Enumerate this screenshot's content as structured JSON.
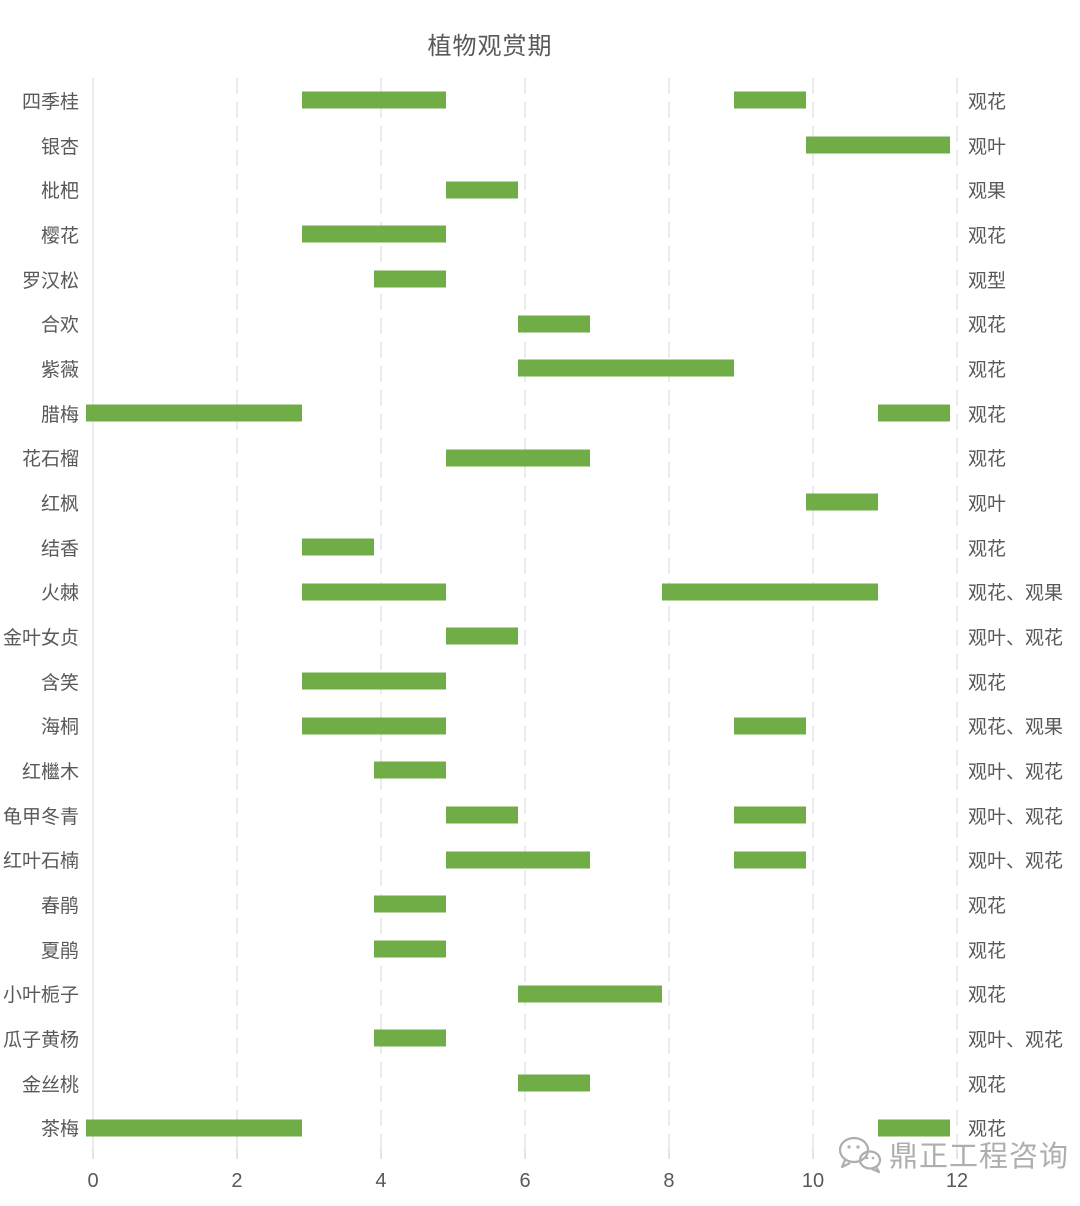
{
  "chart_data": {
    "type": "bar",
    "subtype": "gantt-month-ranges",
    "title": "植物观赏期",
    "xlabel": "",
    "ylabel": "",
    "xlim": [
      0,
      12
    ],
    "x_ticks": [
      0,
      2,
      4,
      6,
      8,
      10,
      12
    ],
    "grid": "vertical-dashed",
    "legend": "none",
    "bar_color": "#70AD47",
    "rows": [
      {
        "name": "四季桂",
        "type": "观花",
        "periods": [
          [
            3,
            5
          ],
          [
            9,
            10
          ]
        ]
      },
      {
        "name": "银杏",
        "type": "观叶",
        "periods": [
          [
            10,
            12
          ]
        ]
      },
      {
        "name": "枇杷",
        "type": "观果",
        "periods": [
          [
            5,
            6
          ]
        ]
      },
      {
        "name": "樱花",
        "type": "观花",
        "periods": [
          [
            3,
            5
          ]
        ]
      },
      {
        "name": "罗汉松",
        "type": "观型",
        "periods": [
          [
            4,
            5
          ]
        ]
      },
      {
        "name": "合欢",
        "type": "观花",
        "periods": [
          [
            6,
            7
          ]
        ]
      },
      {
        "name": "紫薇",
        "type": "观花",
        "periods": [
          [
            6,
            9
          ]
        ]
      },
      {
        "name": "腊梅",
        "type": "观花",
        "periods": [
          [
            0,
            3
          ],
          [
            11,
            12
          ]
        ]
      },
      {
        "name": "花石榴",
        "type": "观花",
        "periods": [
          [
            5,
            7
          ]
        ]
      },
      {
        "name": "红枫",
        "type": "观叶",
        "periods": [
          [
            10,
            11
          ]
        ]
      },
      {
        "name": "结香",
        "type": "观花",
        "periods": [
          [
            3,
            4
          ]
        ]
      },
      {
        "name": "火棘",
        "type": "观花、观果",
        "periods": [
          [
            3,
            5
          ],
          [
            8,
            11
          ]
        ]
      },
      {
        "name": "金叶女贞",
        "type": "观叶、观花",
        "periods": [
          [
            5,
            6
          ]
        ]
      },
      {
        "name": "含笑",
        "type": "观花",
        "periods": [
          [
            3,
            5
          ]
        ]
      },
      {
        "name": "海桐",
        "type": "观花、观果",
        "periods": [
          [
            3,
            5
          ],
          [
            9,
            10
          ]
        ]
      },
      {
        "name": "红檵木",
        "type": "观叶、观花",
        "periods": [
          [
            4,
            5
          ]
        ]
      },
      {
        "name": "龟甲冬青",
        "type": "观叶、观花",
        "periods": [
          [
            5,
            6
          ],
          [
            9,
            10
          ]
        ]
      },
      {
        "name": "红叶石楠",
        "type": "观叶、观花",
        "periods": [
          [
            5,
            7
          ],
          [
            9,
            10
          ]
        ]
      },
      {
        "name": "春鹃",
        "type": "观花",
        "periods": [
          [
            4,
            5
          ]
        ]
      },
      {
        "name": "夏鹃",
        "type": "观花",
        "periods": [
          [
            4,
            5
          ]
        ]
      },
      {
        "name": "小叶栀子",
        "type": "观花",
        "periods": [
          [
            6,
            8
          ]
        ]
      },
      {
        "name": "瓜子黄杨",
        "type": "观叶、观花",
        "periods": [
          [
            4,
            5
          ]
        ]
      },
      {
        "name": "金丝桃",
        "type": "观花",
        "periods": [
          [
            6,
            7
          ]
        ]
      },
      {
        "name": "茶梅",
        "type": "观花",
        "periods": [
          [
            0,
            3
          ],
          [
            11,
            12
          ]
        ]
      }
    ],
    "colors": {
      "bar": "#70AD47",
      "text": "#595959",
      "gridline": "#d9d9d9",
      "tick": "#c9c9c9",
      "watermark": "#a3a3a3"
    }
  },
  "watermark": {
    "icon": "wechat-icon",
    "text": "鼎正工程咨询"
  }
}
